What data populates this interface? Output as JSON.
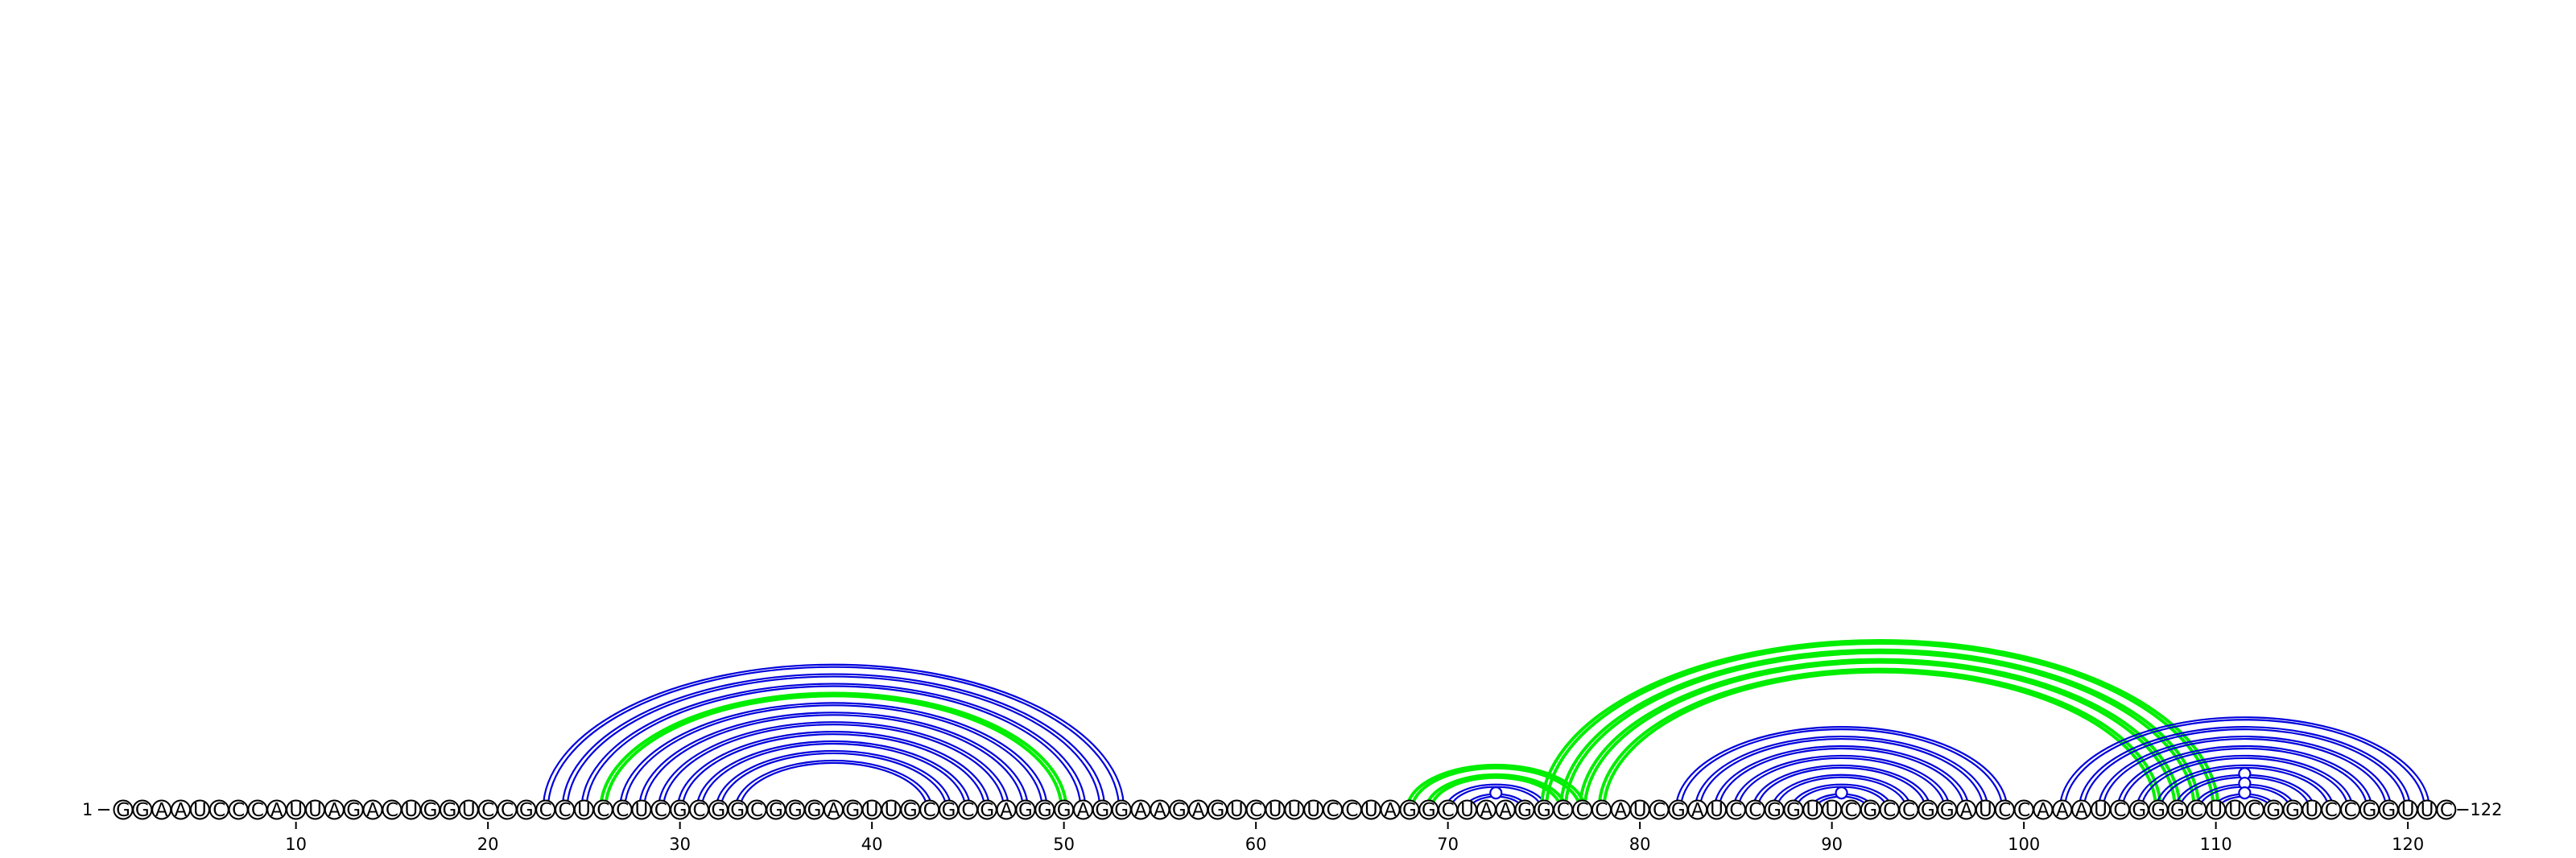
{
  "sequence": "GGAAUCCCAUUAGACUGGUCCGCCUCCUCGCGGCGGGAGUUGCGCGAGGGAGGAAGAGUCUUUCCUAGGCUAAGGCCCAUCGAUCCGGUUCGCCGGAUCCAAAUCGGGCUUCGGUCCGGUUC",
  "length": 122,
  "start_label": "1",
  "end_label": "122",
  "tick_values": [
    10,
    20,
    30,
    40,
    50,
    60,
    70,
    80,
    90,
    100,
    110,
    120
  ],
  "colors": {
    "backbone": "#000000",
    "nested_pair": "#0000dd",
    "pseudoknot_pair": "#00ee00"
  },
  "base_pairs": [
    {
      "i": 23,
      "j": 53,
      "type": "nested"
    },
    {
      "i": 24,
      "j": 52,
      "type": "nested"
    },
    {
      "i": 25,
      "j": 51,
      "type": "nested"
    },
    {
      "i": 26,
      "j": 50,
      "type": "pseudoknot"
    },
    {
      "i": 27,
      "j": 49,
      "type": "nested"
    },
    {
      "i": 28,
      "j": 48,
      "type": "nested"
    },
    {
      "i": 29,
      "j": 47,
      "type": "nested"
    },
    {
      "i": 30,
      "j": 46,
      "type": "nested"
    },
    {
      "i": 31,
      "j": 45,
      "type": "nested"
    },
    {
      "i": 32,
      "j": 44,
      "type": "nested"
    },
    {
      "i": 33,
      "j": 43,
      "type": "nested"
    },
    {
      "i": 68,
      "j": 77,
      "type": "pseudoknot"
    },
    {
      "i": 69,
      "j": 76,
      "type": "pseudoknot"
    },
    {
      "i": 70,
      "j": 75,
      "type": "nested"
    },
    {
      "i": 71,
      "j": 74,
      "type": "nested"
    },
    {
      "i": 75,
      "j": 110,
      "type": "pseudoknot"
    },
    {
      "i": 76,
      "j": 109,
      "type": "pseudoknot"
    },
    {
      "i": 77,
      "j": 108,
      "type": "pseudoknot"
    },
    {
      "i": 78,
      "j": 107,
      "type": "pseudoknot"
    },
    {
      "i": 82,
      "j": 99,
      "type": "nested"
    },
    {
      "i": 83,
      "j": 98,
      "type": "nested"
    },
    {
      "i": 84,
      "j": 97,
      "type": "nested"
    },
    {
      "i": 85,
      "j": 96,
      "type": "nested"
    },
    {
      "i": 86,
      "j": 95,
      "type": "nested"
    },
    {
      "i": 87,
      "j": 94,
      "type": "nested"
    },
    {
      "i": 88,
      "j": 93,
      "type": "nested"
    },
    {
      "i": 89,
      "j": 92,
      "type": "nested"
    },
    {
      "i": 102,
      "j": 121,
      "type": "nested"
    },
    {
      "i": 103,
      "j": 120,
      "type": "nested"
    },
    {
      "i": 104,
      "j": 119,
      "type": "nested"
    },
    {
      "i": 105,
      "j": 118,
      "type": "nested"
    },
    {
      "i": 106,
      "j": 117,
      "type": "nested"
    },
    {
      "i": 107,
      "j": 116,
      "type": "nested"
    },
    {
      "i": 108,
      "j": 115,
      "type": "nested"
    },
    {
      "i": 109,
      "j": 114,
      "type": "nested"
    },
    {
      "i": 110,
      "j": 113,
      "type": "nested"
    }
  ],
  "loop_markers": [
    72.5,
    90.5,
    111.5
  ]
}
